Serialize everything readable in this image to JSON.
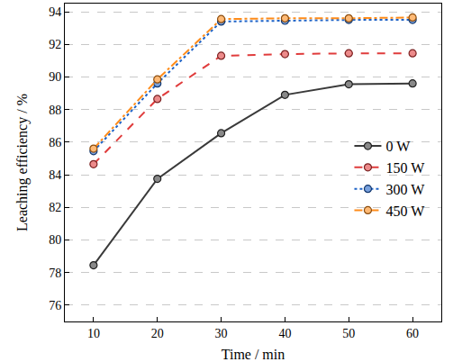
{
  "chart_data": {
    "type": "line",
    "x_label": "Time / min",
    "y_label": "Leaching efficiency / %",
    "x": [
      10,
      20,
      30,
      40,
      50,
      60
    ],
    "series": [
      {
        "name": "0 W",
        "color": "#3a3a3a",
        "line_style": "solid",
        "marker": "circle",
        "values": [
          78.45,
          83.75,
          86.55,
          88.9,
          89.55,
          89.6
        ]
      },
      {
        "name": "150 W",
        "color": "#e03c3c",
        "line_style": "dash",
        "marker": "circle",
        "values": [
          84.65,
          88.65,
          91.3,
          91.4,
          91.45,
          91.45
        ]
      },
      {
        "name": "300 W",
        "color": "#1f63c6",
        "line_style": "dot",
        "marker": "circle",
        "values": [
          85.45,
          89.6,
          93.4,
          93.45,
          93.5,
          93.5
        ]
      },
      {
        "name": "450 W",
        "color": "#ff8c1a",
        "line_style": "dashdot",
        "marker": "circle",
        "values": [
          85.6,
          89.85,
          93.55,
          93.6,
          93.6,
          93.65
        ]
      }
    ],
    "xlim": [
      5.5,
      64.5
    ],
    "xticks": [
      10,
      20,
      30,
      40,
      50,
      60
    ],
    "ylim": [
      75,
      94.5
    ],
    "yticks": [
      76,
      78,
      80,
      82,
      84,
      86,
      88,
      90,
      92,
      94
    ],
    "grid": true,
    "legend": "center right"
  }
}
